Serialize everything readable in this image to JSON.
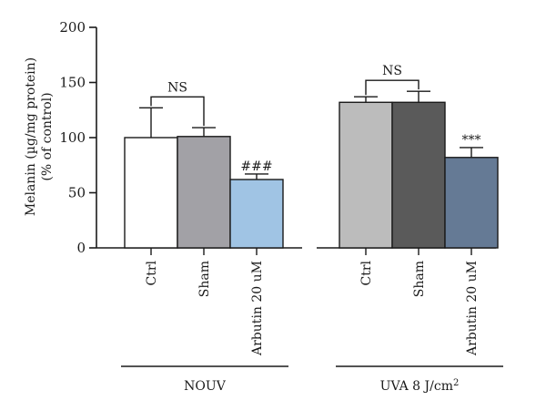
{
  "chart_data": {
    "type": "bar",
    "ylabel_line1": "Melanin (µg/mg protein)",
    "ylabel_line2": "(% of control)",
    "ylim": [
      0,
      200
    ],
    "yticks": [
      "0",
      "50",
      "100",
      "150",
      "200"
    ],
    "groups": [
      {
        "label": "NOUV",
        "bars": [
          {
            "category": "Ctrl",
            "value": 100,
            "error": 27,
            "color": "#ffffff"
          },
          {
            "category": "Sham",
            "value": 101,
            "error": 8,
            "color": "#a2a1a6"
          },
          {
            "category": "Arbutin 20 uM",
            "value": 62,
            "error": 5,
            "color": "#a0c4e4",
            "annotation": "###"
          }
        ],
        "bracket": {
          "from": 0,
          "to": 1,
          "label": "NS"
        }
      },
      {
        "label_prefix": "UVA 8 J/cm",
        "label_sup": "2",
        "bars": [
          {
            "category": "Ctrl",
            "value": 132,
            "error": 5,
            "color": "#bcbcbc"
          },
          {
            "category": "Sham",
            "value": 132,
            "error": 10,
            "color": "#5a5a5a"
          },
          {
            "category": "Arbutin 20 uM",
            "value": 82,
            "error": 9,
            "color": "#657a95",
            "annotation": "***"
          }
        ],
        "bracket": {
          "from": 0,
          "to": 1,
          "label": "NS"
        }
      }
    ]
  }
}
